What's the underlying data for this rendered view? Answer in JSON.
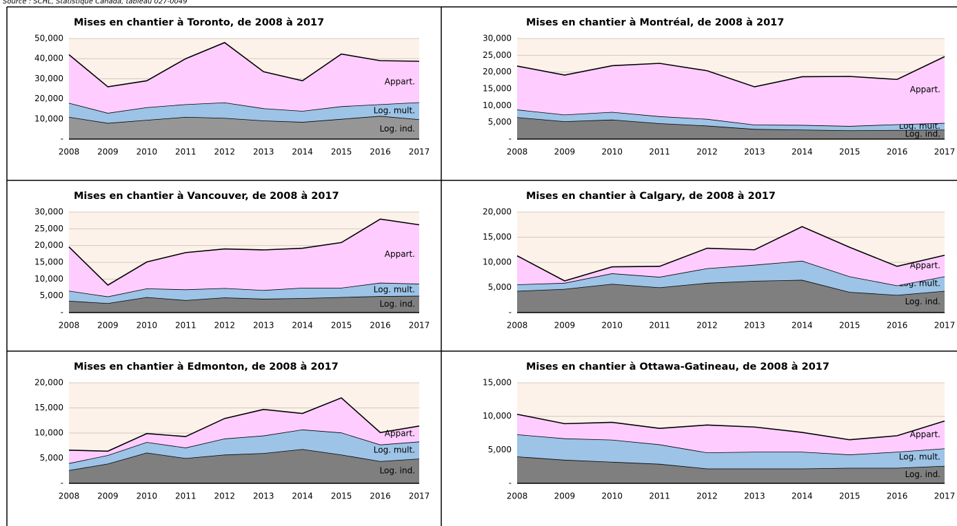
{
  "source": "Source : SCHL, Statistique Canada, tableau 027-0049",
  "chart_data": [
    {
      "type": "stacked_area",
      "title": "Mises en chantier à Toronto, de 2008 à 2017",
      "categories": [
        "2008",
        "2009",
        "2010",
        "2011",
        "2012",
        "2013",
        "2014",
        "2015",
        "2016",
        "2017"
      ],
      "series": [
        {
          "name": "Log. ind.",
          "color": "#969696",
          "values": [
            11000,
            8000,
            9500,
            11000,
            10500,
            9200,
            8500,
            10000,
            11500,
            9800
          ]
        },
        {
          "name": "Log. mult.",
          "color": "#9dc3e6",
          "values": [
            7000,
            5000,
            6300,
            6300,
            7700,
            6100,
            5500,
            6300,
            5800,
            8500
          ]
        },
        {
          "name": "Appart.",
          "color": "#ffccff",
          "values": [
            24000,
            13000,
            13200,
            22700,
            29800,
            18200,
            15000,
            26000,
            21700,
            20400
          ]
        }
      ],
      "ylim": [
        0,
        50000
      ],
      "yticks": [
        {
          "value": 0,
          "label": "-"
        },
        {
          "value": 10000,
          "label": "10,000"
        },
        {
          "value": 20000,
          "label": "20,000"
        },
        {
          "value": 30000,
          "label": "30,000"
        },
        {
          "value": 40000,
          "label": "40,000"
        },
        {
          "value": 50000,
          "label": "50,000"
        }
      ],
      "grid": true
    },
    {
      "type": "stacked_area",
      "title": "Mises en chantier à Montréal, de 2008 à 2017",
      "categories": [
        "2008",
        "2009",
        "2010",
        "2011",
        "2012",
        "2013",
        "2014",
        "2015",
        "2016",
        "2017"
      ],
      "series": [
        {
          "name": "Log. ind.",
          "color": "#7f7f7f",
          "values": [
            6500,
            5300,
            5800,
            4700,
            4000,
            3000,
            2800,
            2600,
            2700,
            2800
          ]
        },
        {
          "name": "Log. mult.",
          "color": "#9dc3e6",
          "values": [
            2300,
            2000,
            2300,
            2100,
            2000,
            1300,
            1400,
            1300,
            1700,
            2000
          ]
        },
        {
          "name": "Appart.",
          "color": "#ffccff",
          "values": [
            13000,
            11800,
            13800,
            15800,
            14400,
            11300,
            14400,
            14800,
            13400,
            19800
          ]
        }
      ],
      "ylim": [
        0,
        30000
      ],
      "yticks": [
        {
          "value": 0,
          "label": "-"
        },
        {
          "value": 5000,
          "label": "5,000"
        },
        {
          "value": 10000,
          "label": "10,000"
        },
        {
          "value": 15000,
          "label": "15,000"
        },
        {
          "value": 20000,
          "label": "20,000"
        },
        {
          "value": 25000,
          "label": "25,000"
        },
        {
          "value": 30000,
          "label": "30,000"
        }
      ],
      "grid": true
    },
    {
      "type": "stacked_area",
      "title": "Mises en chantier à Vancouver, de 2008 à 2017",
      "categories": [
        "2008",
        "2009",
        "2010",
        "2011",
        "2012",
        "2013",
        "2014",
        "2015",
        "2016",
        "2017"
      ],
      "series": [
        {
          "name": "Log. ind.",
          "color": "#7f7f7f",
          "values": [
            3500,
            2800,
            4600,
            3700,
            4500,
            4100,
            4300,
            4600,
            4900,
            5000
          ]
        },
        {
          "name": "Log. mult.",
          "color": "#9dc3e6",
          "values": [
            3000,
            2000,
            2600,
            3200,
            2800,
            2600,
            3100,
            2800,
            4000,
            3600
          ]
        },
        {
          "name": "Appart.",
          "color": "#ffccff",
          "values": [
            13100,
            3400,
            7900,
            11000,
            11700,
            12000,
            11800,
            13500,
            19000,
            17600
          ]
        }
      ],
      "ylim": [
        0,
        30000
      ],
      "yticks": [
        {
          "value": 0,
          "label": "-"
        },
        {
          "value": 5000,
          "label": "5,000"
        },
        {
          "value": 10000,
          "label": "10,000"
        },
        {
          "value": 15000,
          "label": "15,000"
        },
        {
          "value": 20000,
          "label": "20,000"
        },
        {
          "value": 25000,
          "label": "25,000"
        },
        {
          "value": 30000,
          "label": "30,000"
        }
      ],
      "grid": true
    },
    {
      "type": "stacked_area",
      "title": "Mises en chantier à Calgary, de 2008 à 2017",
      "categories": [
        "2008",
        "2009",
        "2010",
        "2011",
        "2012",
        "2013",
        "2014",
        "2015",
        "2016",
        "2017"
      ],
      "series": [
        {
          "name": "Log. ind.",
          "color": "#7f7f7f",
          "values": [
            4300,
            4700,
            5700,
            5000,
            5900,
            6300,
            6500,
            4100,
            3500,
            4300
          ]
        },
        {
          "name": "Log. mult.",
          "color": "#9dc3e6",
          "values": [
            1300,
            1200,
            2100,
            2100,
            2900,
            3200,
            3800,
            3100,
            1900,
            2900
          ]
        },
        {
          "name": "Appart.",
          "color": "#ffccff",
          "values": [
            5700,
            400,
            1300,
            2100,
            4000,
            3000,
            6800,
            5800,
            3800,
            4200
          ]
        }
      ],
      "ylim": [
        0,
        20000
      ],
      "yticks": [
        {
          "value": 0,
          "label": "-"
        },
        {
          "value": 5000,
          "label": "5,000"
        },
        {
          "value": 10000,
          "label": "10,000"
        },
        {
          "value": 15000,
          "label": "15,000"
        },
        {
          "value": 20000,
          "label": "20,000"
        }
      ],
      "grid": true
    },
    {
      "type": "stacked_area",
      "title": "Mises en chantier à Edmonton, de 2008 à 2017",
      "categories": [
        "2008",
        "2009",
        "2010",
        "2011",
        "2012",
        "2013",
        "2014",
        "2015",
        "2016",
        "2017"
      ],
      "series": [
        {
          "name": "Log. ind.",
          "color": "#7f7f7f",
          "values": [
            2600,
            3900,
            6100,
            5000,
            5700,
            6000,
            6800,
            5700,
            4400,
            4900
          ]
        },
        {
          "name": "Log. mult.",
          "color": "#9dc3e6",
          "values": [
            1400,
            1700,
            2100,
            2100,
            3200,
            3500,
            3900,
            4400,
            3300,
            3400
          ]
        },
        {
          "name": "Appart.",
          "color": "#ffccff",
          "values": [
            2600,
            800,
            1700,
            2200,
            4000,
            5200,
            3200,
            6900,
            2400,
            3100
          ]
        }
      ],
      "ylim": [
        0,
        20000
      ],
      "yticks": [
        {
          "value": 0,
          "label": "-"
        },
        {
          "value": 5000,
          "label": "5,000"
        },
        {
          "value": 10000,
          "label": "10,000"
        },
        {
          "value": 15000,
          "label": "15,000"
        },
        {
          "value": 20000,
          "label": "20,000"
        }
      ],
      "grid": true
    },
    {
      "type": "stacked_area",
      "title": "Mises en chantier à Ottawa-Gatineau, de 2008 à 2017",
      "categories": [
        "2008",
        "2009",
        "2010",
        "2011",
        "2012",
        "2013",
        "2014",
        "2015",
        "2016",
        "2017"
      ],
      "series": [
        {
          "name": "Log. ind.",
          "color": "#7f7f7f",
          "values": [
            4000,
            3500,
            3200,
            2900,
            2200,
            2200,
            2200,
            2300,
            2300,
            2600
          ]
        },
        {
          "name": "Log. mult.",
          "color": "#9dc3e6",
          "values": [
            3300,
            3200,
            3300,
            2900,
            2400,
            2500,
            2500,
            2000,
            2400,
            2600
          ]
        },
        {
          "name": "Appart.",
          "color": "#ffccff",
          "values": [
            3000,
            2200,
            2600,
            2400,
            4100,
            3700,
            2900,
            2200,
            2400,
            4100
          ]
        }
      ],
      "ylim": [
        0,
        15000
      ],
      "yticks": [
        {
          "value": 0,
          "label": "-"
        },
        {
          "value": 5000,
          "label": "5,000"
        },
        {
          "value": 10000,
          "label": "10,000"
        },
        {
          "value": 15000,
          "label": "15,000"
        }
      ],
      "grid": true
    }
  ]
}
